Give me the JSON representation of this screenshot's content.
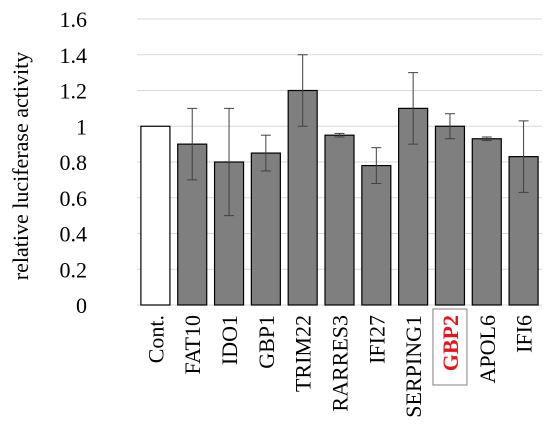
{
  "chart_data": {
    "type": "bar",
    "title": "",
    "xlabel": "",
    "ylabel": "relative luciferase activity",
    "ylim": [
      0,
      1.6
    ],
    "y_ticks": [
      "0",
      "0.2",
      "0.4",
      "0.6",
      "0.8",
      "1",
      "1.2",
      "1.4",
      "1.6"
    ],
    "grid": true,
    "legend": "none",
    "categories": [
      "Cont.",
      "FAT10",
      "IDO1",
      "GBP1",
      "TRIM22",
      "RARRES3",
      "IFI27",
      "SERPING1",
      "GBP2",
      "APOL6",
      "IFI6"
    ],
    "values": [
      1.0,
      0.9,
      0.8,
      0.85,
      1.2,
      0.95,
      0.78,
      1.1,
      1.0,
      0.93,
      0.83
    ],
    "errors": [
      0,
      0.2,
      0.3,
      0.1,
      0.2,
      0.01,
      0.1,
      0.2,
      0.07,
      0.01,
      0.2
    ],
    "highlighted_category": "GBP2",
    "colors": {
      "control_bar": "#ffffff",
      "bar": "#7f7f7f",
      "bar_stroke": "#000000",
      "grid": "#d9d9d9",
      "highlight_text": "#e8141b",
      "text": "#000000"
    }
  }
}
